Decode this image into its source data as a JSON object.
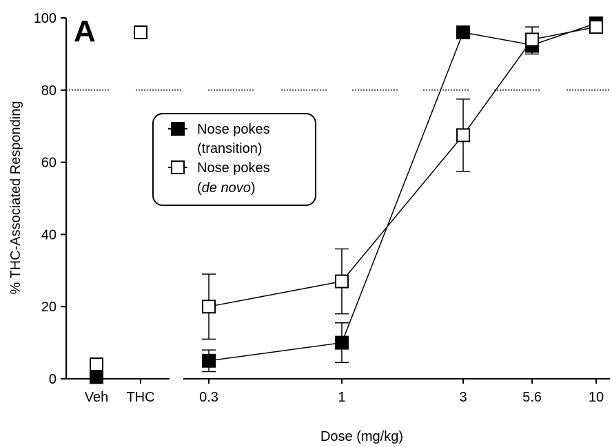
{
  "chart_data": {
    "type": "scatter",
    "panel_label": "A",
    "xlabel": "Dose (mg/kg)",
    "ylabel": "% THC-Associated Responding",
    "ylim": [
      0,
      100
    ],
    "y_ticks": [
      0,
      20,
      40,
      60,
      80,
      100
    ],
    "x_scale": "log (dose segment)",
    "control_categories": [
      "Veh",
      "THC"
    ],
    "dose_ticks": [
      "0.3",
      "1",
      "3",
      "5.6",
      "10"
    ],
    "dose_values": [
      0.3,
      1,
      3,
      5.6,
      10
    ],
    "reference_line": {
      "y": 80,
      "style": "dotted"
    },
    "grid": false,
    "legend_position": "center-left",
    "series": [
      {
        "name": "Nose pokes (transition)",
        "legend_lines": [
          "Nose pokes",
          "(transition)",
          ""
        ],
        "marker": "filled-square",
        "controls": [
          {
            "x": "Veh",
            "y": 0.5
          }
        ],
        "doses": [
          {
            "x": 0.3,
            "y": 5,
            "err": 3
          },
          {
            "x": 1,
            "y": 10,
            "err": 5.5
          },
          {
            "x": 3,
            "y": 96,
            "err": 0.5
          },
          {
            "x": 5.6,
            "y": 92.5,
            "err": 2.5
          },
          {
            "x": 10,
            "y": 98.5,
            "err": 0.5
          }
        ]
      },
      {
        "name": "Nose pokes (de novo)",
        "legend_lines": [
          "Nose pokes",
          "(",
          "de novo",
          ")"
        ],
        "marker": "open-square",
        "controls": [
          {
            "x": "Veh",
            "y": 4
          },
          {
            "x": "THC",
            "y": 96
          }
        ],
        "doses": [
          {
            "x": 0.3,
            "y": 20,
            "err": 9
          },
          {
            "x": 1,
            "y": 27,
            "err": 9
          },
          {
            "x": 3,
            "y": 67.5,
            "err": 10
          },
          {
            "x": 5.6,
            "y": 94,
            "err": 3.5
          },
          {
            "x": 10,
            "y": 97.5,
            "err": 0.5
          }
        ]
      }
    ]
  }
}
